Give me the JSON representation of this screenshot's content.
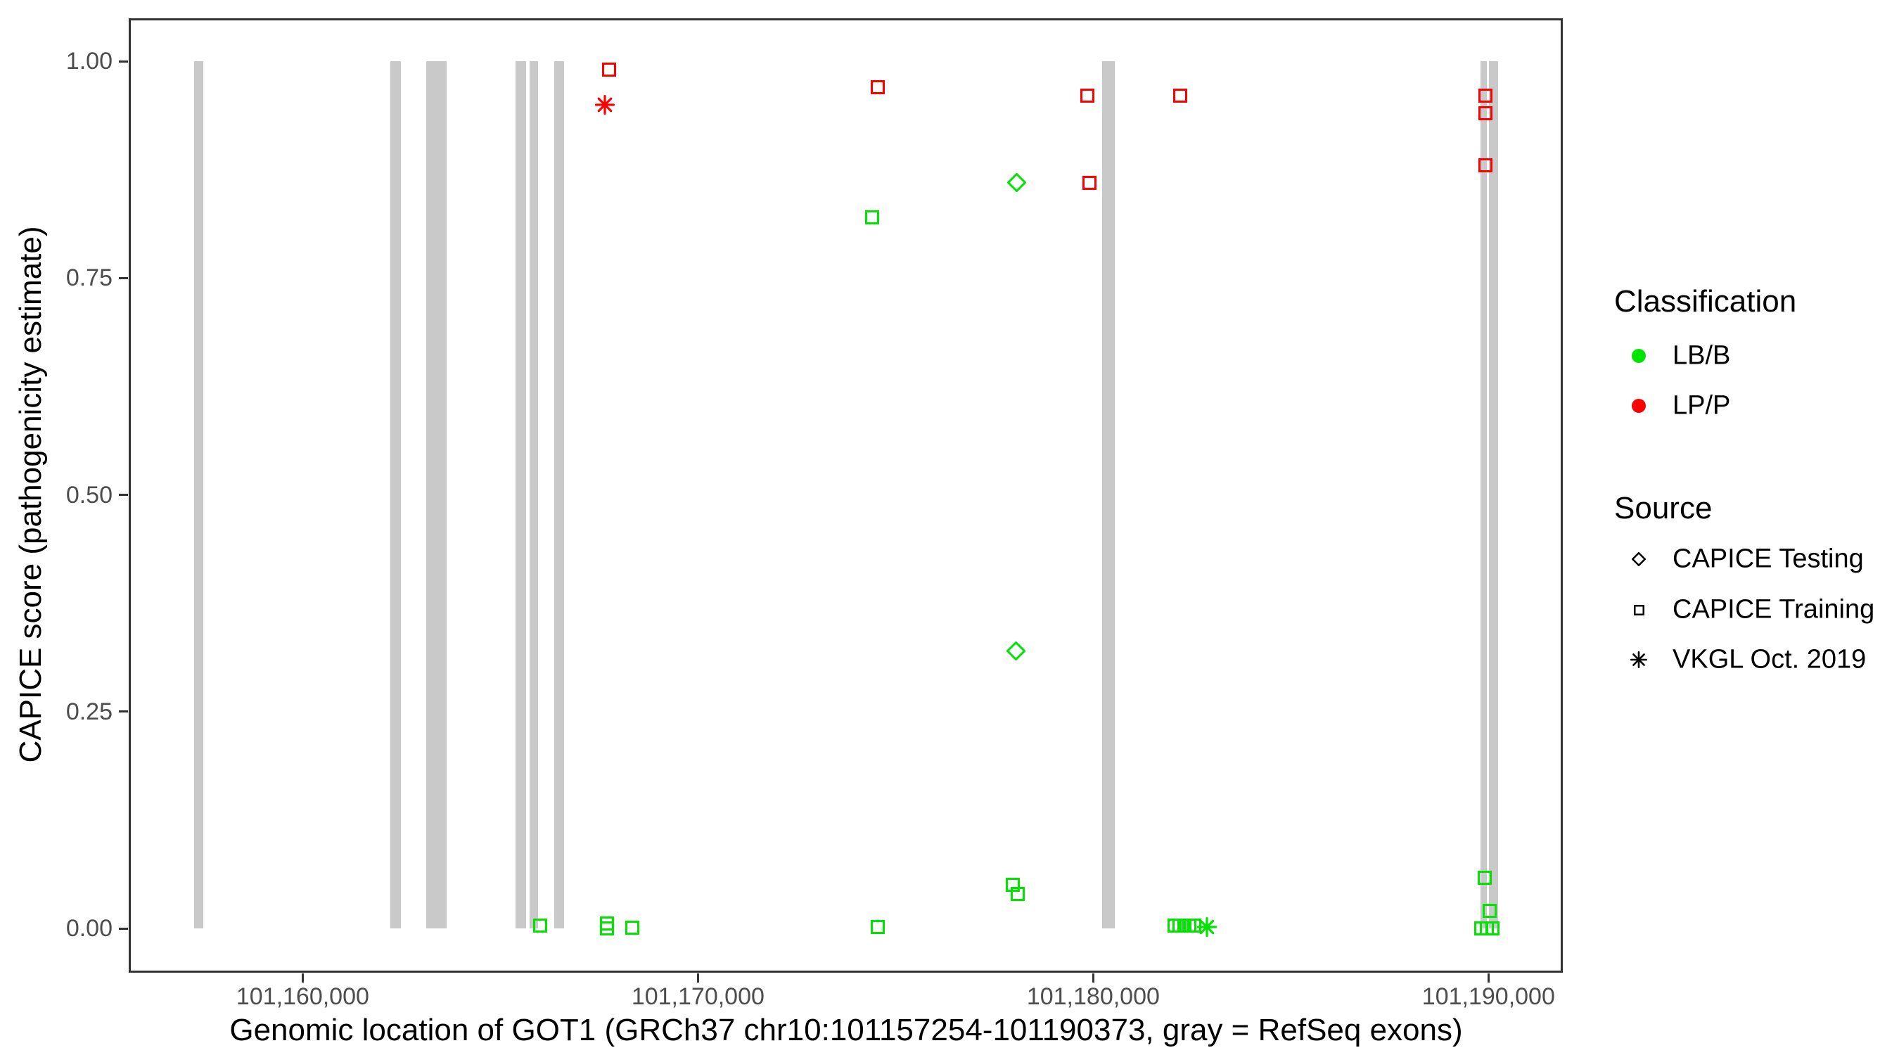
{
  "colors": {
    "lbb_green": "#00E400",
    "lpp_red": "#FF0000",
    "exon_gray": "#C9C9C9",
    "axis_text": "#4D4D4D",
    "panel_border": "#333333"
  },
  "axes": {
    "x": {
      "title": "Genomic location of GOT1 (GRCh37 chr10:101157254-101190373, gray = RefSeq exons)",
      "tick_values": [
        101160000,
        101170000,
        101180000,
        101190000
      ],
      "tick_labels": [
        "101,160,000",
        "101,170,000",
        "101,180,000",
        "101,190,000"
      ],
      "range": [
        101155598,
        101191880
      ]
    },
    "y": {
      "title": "CAPICE score (pathogenicity estimate)",
      "tick_values": [
        0.0,
        0.25,
        0.5,
        0.75,
        1.0
      ],
      "tick_labels": [
        "0.00",
        "0.25",
        "0.50",
        "0.75",
        "1.00"
      ],
      "range": [
        -0.051,
        1.049
      ]
    }
  },
  "legend": {
    "classification": {
      "title": "Classification",
      "items": [
        {
          "label": "LB/B",
          "shape": "circle",
          "color": "#00E400"
        },
        {
          "label": "LP/P",
          "shape": "circle",
          "color": "#FF0000"
        }
      ]
    },
    "source": {
      "title": "Source",
      "items": [
        {
          "label": "CAPICE Testing",
          "shape": "diamond",
          "color": "#000000"
        },
        {
          "label": "CAPICE Training",
          "shape": "square",
          "color": "#000000"
        },
        {
          "label": "VKGL Oct. 2019",
          "shape": "asterisk",
          "color": "#000000"
        }
      ]
    }
  },
  "chart_data": {
    "type": "scatter",
    "title": "",
    "xlabel": "Genomic location of GOT1 (GRCh37 chr10:101157254-101190373, gray = RefSeq exons)",
    "ylabel": "CAPICE score (pathogenicity estimate)",
    "xlim": [
      101155598,
      101191880
    ],
    "ylim": [
      -0.051,
      1.049
    ],
    "grid": false,
    "legend_position": "right",
    "refseq_exons": [
      [
        101157250,
        101157480
      ],
      [
        101162220,
        101162480
      ],
      [
        101163120,
        101163640
      ],
      [
        101165380,
        101165650
      ],
      [
        101165740,
        101165950
      ],
      [
        101166360,
        101166610
      ],
      [
        101180220,
        101180540
      ],
      [
        101189800,
        101189960
      ],
      [
        101190010,
        101190240
      ]
    ],
    "series": [
      {
        "name": "LP/P | CAPICE Training",
        "classification": "LP/P",
        "source": "CAPICE Training",
        "shape": "square",
        "color": "#FF0000",
        "points": [
          {
            "x": 101167750,
            "y": 0.99
          },
          {
            "x": 101174550,
            "y": 0.97
          },
          {
            "x": 101179850,
            "y": 0.96
          },
          {
            "x": 101179900,
            "y": 0.86
          },
          {
            "x": 101182200,
            "y": 0.96
          },
          {
            "x": 101189920,
            "y": 0.96
          },
          {
            "x": 101189920,
            "y": 0.94
          },
          {
            "x": 101189920,
            "y": 0.88
          }
        ]
      },
      {
        "name": "LP/P | VKGL Oct. 2019",
        "classification": "LP/P",
        "source": "VKGL Oct. 2019",
        "shape": "asterisk",
        "color": "#FF0000",
        "points": [
          {
            "x": 101167640,
            "y": 0.95
          }
        ]
      },
      {
        "name": "LB/B | CAPICE Testing",
        "classification": "LB/B",
        "source": "CAPICE Testing",
        "shape": "diamond",
        "color": "#00E400",
        "points": [
          {
            "x": 101178070,
            "y": 0.86
          },
          {
            "x": 101178040,
            "y": 0.32
          }
        ]
      },
      {
        "name": "LB/B | CAPICE Training",
        "classification": "LB/B",
        "source": "CAPICE Training",
        "shape": "square",
        "color": "#00E400",
        "points": [
          {
            "x": 101174400,
            "y": 0.82
          },
          {
            "x": 101177960,
            "y": 0.05
          },
          {
            "x": 101178090,
            "y": 0.04
          },
          {
            "x": 101166010,
            "y": 0.003
          },
          {
            "x": 101167700,
            "y": 0.006
          },
          {
            "x": 101167700,
            "y": 0.0
          },
          {
            "x": 101168340,
            "y": 0.001
          },
          {
            "x": 101174550,
            "y": 0.002
          },
          {
            "x": 101182060,
            "y": 0.003
          },
          {
            "x": 101182180,
            "y": 0.003
          },
          {
            "x": 101182310,
            "y": 0.003
          },
          {
            "x": 101182430,
            "y": 0.003
          },
          {
            "x": 101182560,
            "y": 0.003
          },
          {
            "x": 101189900,
            "y": 0.058
          },
          {
            "x": 101190030,
            "y": 0.02
          },
          {
            "x": 101189820,
            "y": 0.0
          },
          {
            "x": 101189960,
            "y": 0.0
          },
          {
            "x": 101190100,
            "y": 0.0
          }
        ]
      },
      {
        "name": "LB/B | VKGL Oct. 2019",
        "classification": "LB/B",
        "source": "VKGL Oct. 2019",
        "shape": "asterisk",
        "color": "#00E400",
        "points": [
          {
            "x": 101182880,
            "y": 0.002
          }
        ]
      }
    ]
  }
}
